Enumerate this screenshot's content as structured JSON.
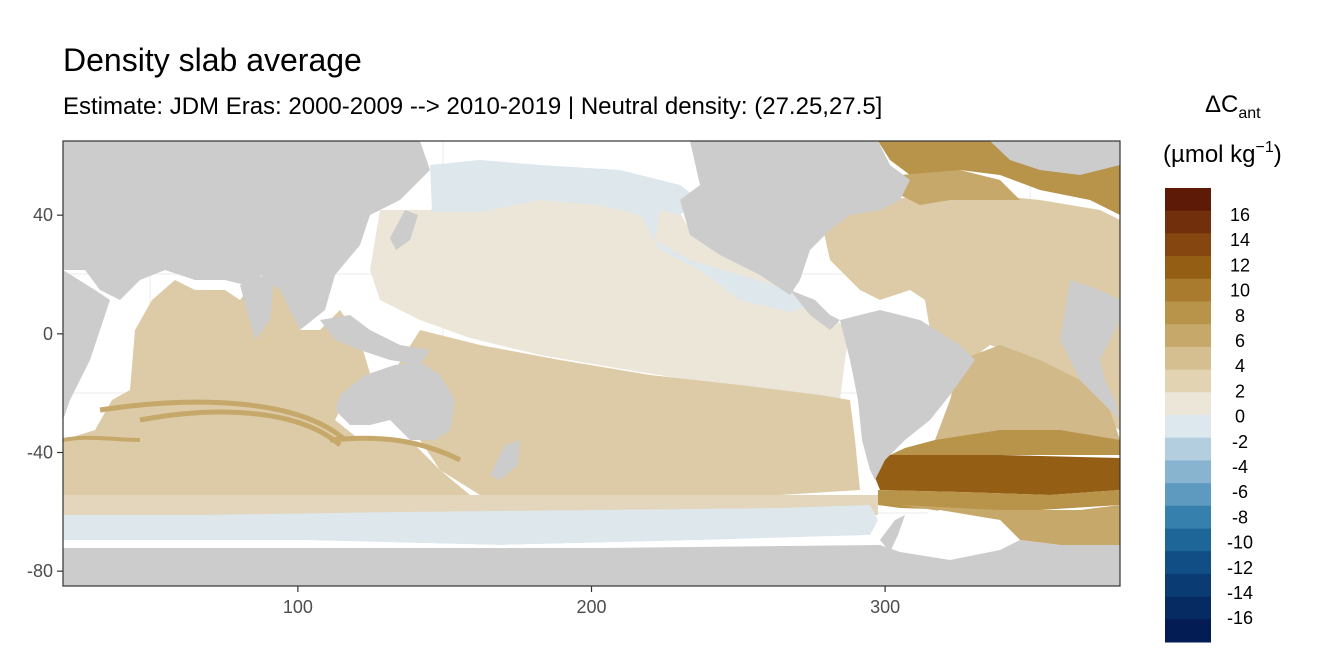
{
  "title": "Density slab average",
  "subtitle": "Estimate: JDM Eras: 2000-2009 --> 2010-2019 | Neutral density: (27.25,27.5]",
  "map": {
    "x_ticks": [
      100,
      200,
      300
    ],
    "y_ticks": [
      40,
      0,
      -40,
      -80
    ],
    "x_range": [
      20,
      380
    ],
    "y_range": [
      -85,
      65
    ],
    "colors": {
      "land": "#cccccc",
      "no_data": "#ffffff",
      "grid": "#ebebeb",
      "frame": "#333333"
    }
  },
  "legend": {
    "title_main": "ΔC",
    "title_sub": "ant",
    "unit_prefix": "(µmol kg",
    "unit_exp": "−1",
    "unit_suffix": ")",
    "labels": [
      "16",
      "14",
      "12",
      "10",
      "8",
      "6",
      "4",
      "2",
      "0",
      "-2",
      "-4",
      "-6",
      "-8",
      "-10",
      "-12",
      "-14",
      "-16"
    ],
    "colors": [
      "#5c1a07",
      "#71300b",
      "#86460f",
      "#955e15",
      "#a87b2e",
      "#b8934a",
      "#c6a86a",
      "#d5bf90",
      "#e2d3b2",
      "#ece6d9",
      "#dce8ee",
      "#b3cedf",
      "#89b4cf",
      "#5e9abf",
      "#3680ad",
      "#1e6698",
      "#104e85",
      "#0a3c73",
      "#062b62",
      "#031c53"
    ]
  }
}
